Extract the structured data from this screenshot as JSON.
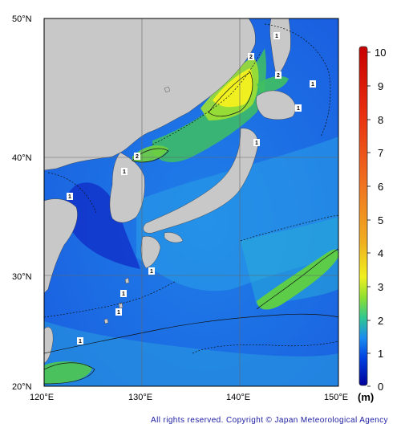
{
  "map": {
    "lat_labels": [
      "50°N",
      "40°N",
      "30°N",
      "20°N"
    ],
    "lon_labels": [
      "120°E",
      "130°E",
      "140°E",
      "150°E"
    ],
    "colorbar": {
      "ticks": [
        "10",
        "9",
        "8",
        "7",
        "6",
        "5",
        "4",
        "3",
        "2",
        "1",
        "0"
      ],
      "unit": "(m)",
      "colors": [
        "#0010c0",
        "#0050e0",
        "#20a0f0",
        "#30d070",
        "#d8f020",
        "#f0c020",
        "#f08020",
        "#e02010"
      ]
    },
    "contour_labels": [
      "2",
      "2",
      "1",
      "1",
      "2",
      "1",
      "1",
      "1",
      "1",
      "1",
      "1",
      "1",
      "1"
    ],
    "colors": {
      "land": "#c8c8c8",
      "sea_low": "#1040d0",
      "sea_mid": "#2090f0",
      "grid": "#6a6a6a"
    }
  },
  "footer": {
    "copyright": "All rights reserved. Copyright © Japan Meteorological Agency"
  }
}
